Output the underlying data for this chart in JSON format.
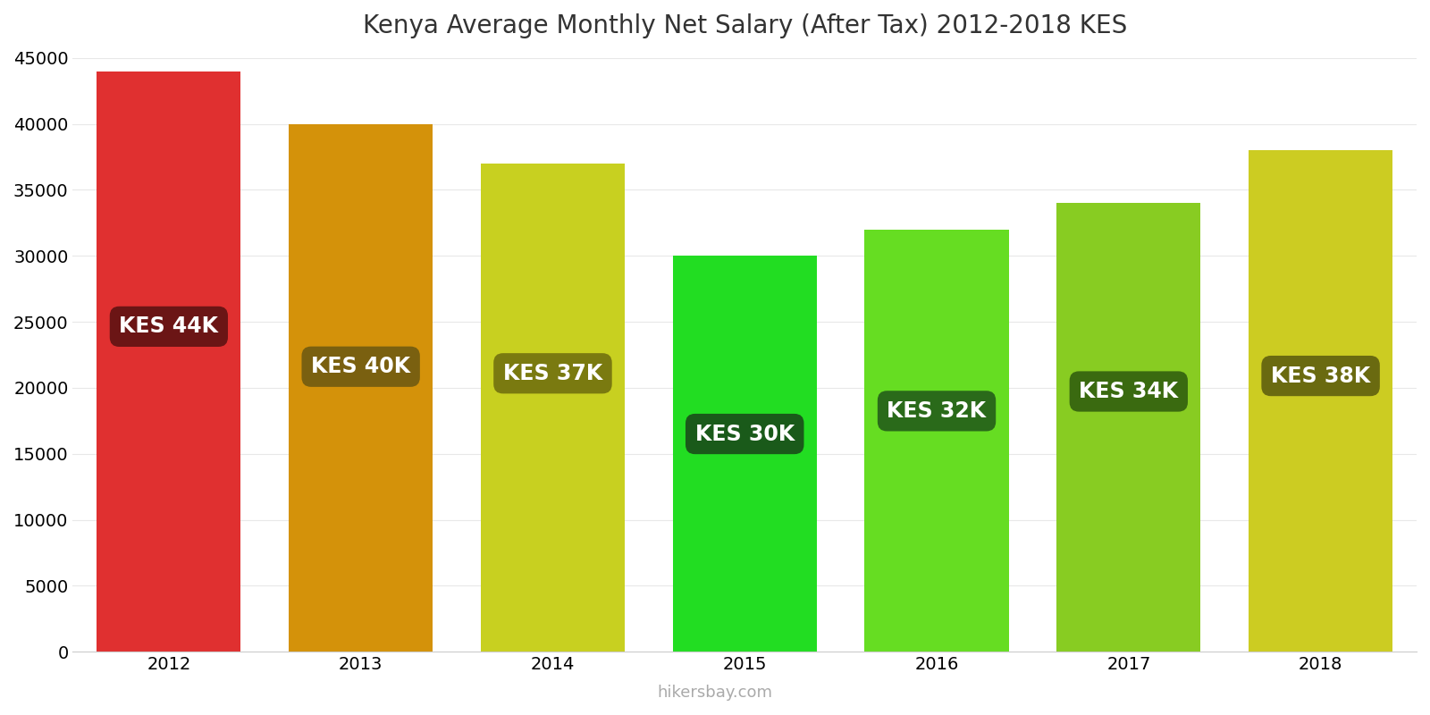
{
  "title": "Kenya Average Monthly Net Salary (After Tax) 2012-2018 KES",
  "years": [
    2012,
    2013,
    2014,
    2015,
    2016,
    2017,
    2018
  ],
  "values": [
    44000,
    40000,
    37000,
    30000,
    32000,
    34000,
    38000
  ],
  "labels": [
    "KES 44K",
    "KES 40K",
    "KES 37K",
    "KES 30K",
    "KES 32K",
    "KES 34K",
    "KES 38K"
  ],
  "label_y_fractions": [
    0.56,
    0.54,
    0.57,
    0.55,
    0.57,
    0.58,
    0.55
  ],
  "bar_colors": [
    "#e03030",
    "#d4920a",
    "#c8d020",
    "#22dd22",
    "#66dd22",
    "#88cc22",
    "#cccc22"
  ],
  "label_bg_colors": [
    "#6b1515",
    "#7a6010",
    "#7a7a10",
    "#1a5a1a",
    "#2a6a1a",
    "#3a6a10",
    "#6a6a10"
  ],
  "ylim": [
    0,
    45000
  ],
  "yticks": [
    0,
    5000,
    10000,
    15000,
    20000,
    25000,
    30000,
    35000,
    40000,
    45000
  ],
  "background_color": "#ffffff",
  "grid_color": "#e8e8e8",
  "title_fontsize": 20,
  "label_fontsize": 17,
  "tick_fontsize": 14,
  "watermark": "hikersbay.com",
  "bar_width": 0.75
}
